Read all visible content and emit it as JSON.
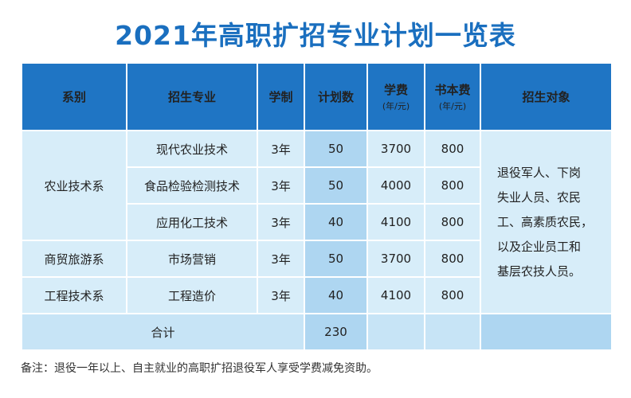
{
  "title": "2021年高职扩招专业计划一览表",
  "headers": {
    "department": "系别",
    "major": "招生专业",
    "duration": "学制",
    "plan": "计划数",
    "tuition": "学费",
    "tuition_unit": "(年/元)",
    "books": "书本费",
    "books_unit": "(年/元)",
    "target": "招生对象"
  },
  "rows": [
    {
      "department": "农业技术系",
      "major": "现代农业技术",
      "duration": "3年",
      "plan": "50",
      "tuition": "3700",
      "books": "800"
    },
    {
      "department": "",
      "major": "食品检验检测技术",
      "duration": "3年",
      "plan": "50",
      "tuition": "4000",
      "books": "800"
    },
    {
      "department": "",
      "major": "应用化工技术",
      "duration": "3年",
      "plan": "40",
      "tuition": "4100",
      "books": "800"
    },
    {
      "department": "商贸旅游系",
      "major": "市场营销",
      "duration": "3年",
      "plan": "50",
      "tuition": "3700",
      "books": "800"
    },
    {
      "department": "工程技术系",
      "major": "工程造价",
      "duration": "3年",
      "plan": "40",
      "tuition": "4100",
      "books": "800"
    }
  ],
  "target_lines": [
    "退役军人、下岗",
    "失业人员、农民",
    "工、高素质农民，",
    "以及企业员工和",
    "基层农技人员。"
  ],
  "total": {
    "label": "合计",
    "plan": "230"
  },
  "note": "备注：退役一年以上、自主就业的高职扩招退役军人享受学费减免资助。",
  "colors": {
    "header_bg": "#1f75c4",
    "title": "#1a6fbf",
    "cell_bg": "#d7edf9",
    "plan_bg": "#aed6f1"
  }
}
